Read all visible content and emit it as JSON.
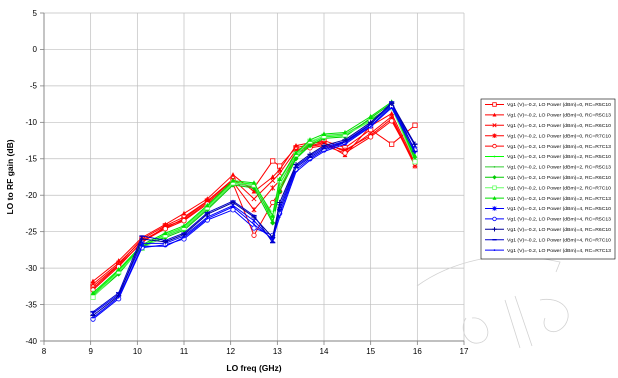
{
  "chart_data": {
    "type": "line",
    "xlabel": "LO freq (GHz)",
    "ylabel": "LO to RF gain (dB)",
    "xlim": [
      8,
      17
    ],
    "ylim": [
      -40,
      5
    ],
    "xticks": [
      8,
      9,
      10,
      11,
      12,
      13,
      14,
      15,
      16,
      17
    ],
    "yticks": [
      5,
      0,
      -5,
      -10,
      -15,
      -20,
      -25,
      -30,
      -35,
      -40
    ],
    "grid": true,
    "legend_position": "right",
    "x": [
      9.05,
      9.6,
      10.1,
      10.6,
      11.0,
      11.5,
      12.05,
      12.5,
      12.9,
      13.05,
      13.4,
      13.7,
      14.0,
      14.45,
      15.0,
      15.45,
      15.95
    ],
    "series": [
      {
        "name": "Vg1 (V)=-0.2, LO Power (dBm)=0, RC=R5C10",
        "color": "#ff0000",
        "marker": "square-open",
        "values": [
          -32.5,
          -29.5,
          -26.0,
          -24.2,
          -23.0,
          -20.8,
          -18.0,
          -19.0,
          -15.3,
          -16.0,
          -13.5,
          -13.0,
          -12.5,
          -13.5,
          -11.0,
          -13.0,
          -10.4
        ]
      },
      {
        "name": "Vg1 (V)=-0.2, LO Power (dBm)=0, RC=R5C13",
        "color": "#ff0000",
        "marker": "triangle",
        "values": [
          -31.8,
          -29.0,
          -25.8,
          -24.0,
          -22.5,
          -20.5,
          -17.2,
          -19.5,
          -17.5,
          -16.5,
          -13.2,
          -12.8,
          -12.8,
          -14.5,
          -10.5,
          -8.8,
          -15.5
        ]
      },
      {
        "name": "Vg1 (V)=-0.2, LO Power (dBm)=0, RC=R6C10",
        "color": "#ff0000",
        "marker": "x",
        "values": [
          -32.2,
          -29.3,
          -26.2,
          -24.5,
          -23.2,
          -20.8,
          -17.8,
          -20.5,
          -18.0,
          -17.0,
          -13.8,
          -13.2,
          -12.8,
          -14.0,
          -11.5,
          -9.2,
          -15.8
        ]
      },
      {
        "name": "Vg1 (V)=-0.2, LO Power (dBm)=0, RC=R7C10",
        "color": "#ff0000",
        "marker": "asterisk",
        "values": [
          -32.8,
          -29.6,
          -26.5,
          -24.3,
          -23.4,
          -21.0,
          -18.2,
          -22.0,
          -19.0,
          -18.0,
          -14.0,
          -13.3,
          -13.0,
          -13.8,
          -11.8,
          -9.5,
          -16.0
        ]
      },
      {
        "name": "Vg1 (V)=-0.2, LO Power (dBm)=0, RC=R7C13",
        "color": "#ff0000",
        "marker": "circle-open",
        "values": [
          -33.0,
          -29.8,
          -26.4,
          -24.6,
          -23.5,
          -21.2,
          -18.4,
          -25.5,
          -21.0,
          -19.5,
          -14.2,
          -13.5,
          -13.2,
          -14.2,
          -12.0,
          -9.8,
          -15.6
        ]
      },
      {
        "name": "Vg1 (V)=-0.2, LO Power (dBm)=2, RC=R5C10",
        "color": "#00ff00",
        "marker": "point",
        "values": [
          -33.6,
          -30.4,
          -27.0,
          -25.4,
          -24.4,
          -21.6,
          -18.2,
          -18.5,
          -23.5,
          -19.0,
          -14.8,
          -13.0,
          -12.0,
          -11.8,
          -9.8,
          -7.6,
          -14.8
        ]
      },
      {
        "name": "Vg1 (V)=-0.2, LO Power (dBm)=2, RC=R5C13",
        "color": "#33cc33",
        "marker": "point",
        "values": [
          -33.8,
          -30.6,
          -27.2,
          -25.6,
          -24.6,
          -21.8,
          -18.4,
          -18.8,
          -23.0,
          -18.5,
          -14.5,
          -12.8,
          -11.8,
          -11.6,
          -9.6,
          -7.8,
          -15.0
        ]
      },
      {
        "name": "Vg1 (V)=-0.2, LO Power (dBm)=2, RC=R6C10",
        "color": "#00cc00",
        "marker": "diamond",
        "values": [
          -33.9,
          -30.8,
          -27.0,
          -25.8,
          -24.8,
          -22.0,
          -18.6,
          -19.0,
          -23.8,
          -19.5,
          -15.0,
          -13.2,
          -12.2,
          -12.0,
          -9.4,
          -7.4,
          -15.2
        ]
      },
      {
        "name": "Vg1 (V)=-0.2, LO Power (dBm)=2, RC=R7C10",
        "color": "#66ff66",
        "marker": "square-open",
        "values": [
          -34.0,
          -30.5,
          -27.3,
          -25.5,
          -24.5,
          -21.7,
          -18.3,
          -18.6,
          -22.5,
          -18.0,
          -14.4,
          -12.6,
          -11.9,
          -11.7,
          -9.9,
          -8.0,
          -15.4
        ]
      },
      {
        "name": "Vg1 (V)=-0.2, LO Power (dBm)=2, RC=R7C13",
        "color": "#00e000",
        "marker": "triangle",
        "values": [
          -33.4,
          -30.2,
          -26.8,
          -25.2,
          -24.2,
          -21.4,
          -18.0,
          -18.3,
          -22.8,
          -17.8,
          -14.2,
          -12.4,
          -11.6,
          -11.4,
          -9.2,
          -7.2,
          -14.6
        ]
      },
      {
        "name": "Vg1 (V)=-0.2, LO Power (dBm)=4, RC=R5C10",
        "color": "#0000ff",
        "marker": "asterisk",
        "values": [
          -36.2,
          -33.6,
          -26.6,
          -26.6,
          -25.6,
          -23.0,
          -21.4,
          -23.5,
          -26.2,
          -21.5,
          -16.0,
          -14.6,
          -13.4,
          -12.6,
          -10.2,
          -7.6,
          -13.2
        ]
      },
      {
        "name": "Vg1 (V)=-0.2, LO Power (dBm)=4, RC=R5C13",
        "color": "#0000ff",
        "marker": "circle-open",
        "values": [
          -37.0,
          -34.2,
          -27.2,
          -26.8,
          -26.0,
          -23.4,
          -22.0,
          -24.5,
          -25.5,
          -22.5,
          -16.5,
          -15.0,
          -13.8,
          -12.8,
          -10.5,
          -7.8,
          -13.8
        ]
      },
      {
        "name": "Vg1 (V)=-0.2, LO Power (dBm)=4, RC=R6C10",
        "color": "#000099",
        "marker": "plus",
        "values": [
          -36.5,
          -33.8,
          -26.0,
          -26.4,
          -25.4,
          -22.6,
          -21.0,
          -23.0,
          -25.8,
          -21.0,
          -15.8,
          -14.4,
          -13.2,
          -12.4,
          -10.0,
          -7.4,
          -13.0
        ]
      },
      {
        "name": "Vg1 (V)=-0.2, LO Power (dBm)=4, RC=R7C10",
        "color": "#0000cc",
        "marker": "dash",
        "values": [
          -36.0,
          -33.4,
          -25.6,
          -26.2,
          -25.2,
          -22.4,
          -20.8,
          -22.8,
          -26.5,
          -22.0,
          -16.2,
          -14.8,
          -13.6,
          -12.7,
          -10.3,
          -7.2,
          -14.0
        ]
      },
      {
        "name": "Vg1 (V)=-0.2, LO Power (dBm)=4, RC=R7C13",
        "color": "#0000ff",
        "marker": "point",
        "values": [
          -36.8,
          -34.0,
          -27.0,
          -27.0,
          -25.8,
          -23.2,
          -21.6,
          -24.0,
          -26.0,
          -23.0,
          -16.8,
          -15.2,
          -14.0,
          -13.0,
          -10.6,
          -8.0,
          -14.2
        ]
      }
    ]
  }
}
